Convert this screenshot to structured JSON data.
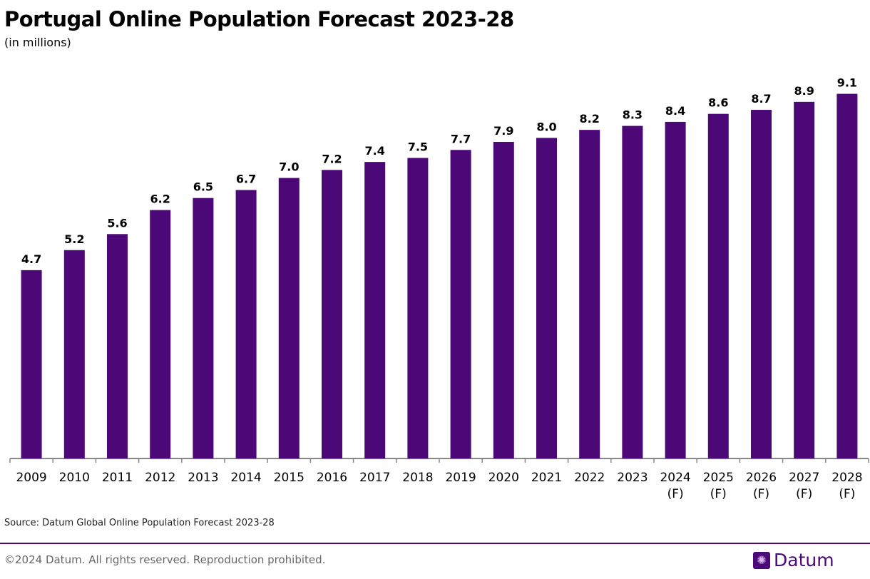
{
  "chart_data": {
    "type": "bar",
    "title": "Portugal Online Population Forecast 2023-28",
    "subtitle": "(in millions)",
    "categories": [
      "2009",
      "2010",
      "2011",
      "2012",
      "2013",
      "2014",
      "2015",
      "2016",
      "2017",
      "2018",
      "2019",
      "2020",
      "2021",
      "2022",
      "2023",
      "2024\n(F)",
      "2025\n(F)",
      "2026\n(F)",
      "2027\n(F)",
      "2028\n(F)"
    ],
    "values": [
      4.7,
      5.2,
      5.6,
      6.2,
      6.5,
      6.7,
      7.0,
      7.2,
      7.4,
      7.5,
      7.7,
      7.9,
      8.0,
      8.2,
      8.3,
      8.4,
      8.6,
      8.7,
      8.9,
      9.1
    ],
    "ylim": [
      0,
      10
    ],
    "grid": false,
    "bar_color": "#4b0876",
    "xlabel": "",
    "ylabel": ""
  },
  "footer": {
    "source": "Source: Datum Global Online Population Forecast 2023-28",
    "copyright": "©2024 Datum. All rights reserved. Reproduction prohibited.",
    "logo_text": "Datum",
    "logo_icon": "snowflake-icon"
  }
}
